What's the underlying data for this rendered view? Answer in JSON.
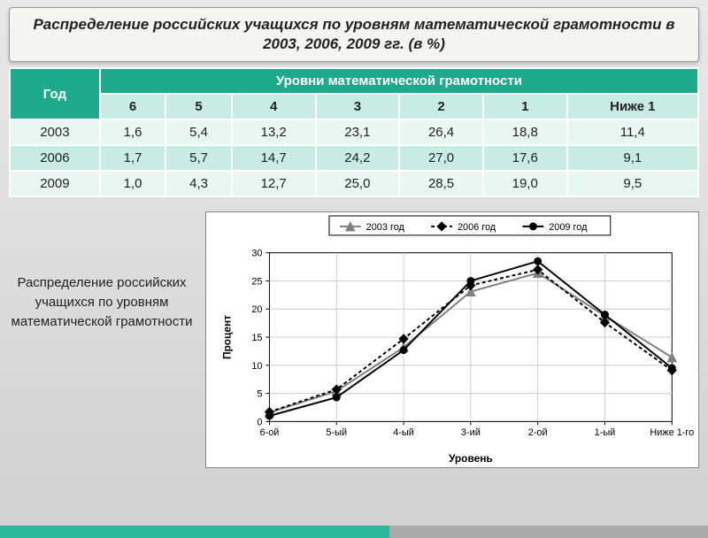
{
  "title": "Распределение российских учащихся по уровням математической грамотности в 2003, 2006, 2009 гг. (в %)",
  "table": {
    "corner_label": "Год",
    "span_label": "Уровни математической грамотности",
    "level_headers": [
      "6",
      "5",
      "4",
      "3",
      "2",
      "1",
      "Ниже 1"
    ],
    "rows": [
      {
        "year": "2003",
        "cells": [
          "1,6",
          "5,4",
          "13,2",
          "23,1",
          "26,4",
          "18,8",
          "11,4"
        ]
      },
      {
        "year": "2006",
        "cells": [
          "1,7",
          "5,7",
          "14,7",
          "24,2",
          "27,0",
          "17,6",
          "9,1"
        ]
      },
      {
        "year": "2009",
        "cells": [
          "1,0",
          "4,3",
          "12,7",
          "25,0",
          "28,5",
          "19,0",
          "9,5"
        ]
      }
    ],
    "header_bg": "#1fa98d",
    "header_fg": "#ffffff",
    "subheader_bg": "#c8ece3",
    "row_alt_a": "#e8f7f2",
    "row_alt_b": "#c8ece3",
    "border_color": "#ffffff"
  },
  "caption": "Распределение российских учащихся по уровням математической грамотности",
  "chart": {
    "type": "line",
    "background_color": "#ffffff",
    "grid_color": "#cccccc",
    "axis_color": "#000000",
    "xlabel": "Уровень",
    "ylabel": "Процент",
    "categories": [
      "6-ой",
      "5-ый",
      "4-ый",
      "3-ий",
      "2-ой",
      "1-ый",
      "Ниже 1-го"
    ],
    "ylim": [
      0,
      30
    ],
    "ytick_step": 5,
    "label_fontsize": 12,
    "tick_fontsize": 11,
    "line_width": 2,
    "marker_size": 5,
    "legend_position": "top",
    "series": [
      {
        "name": "2003 год",
        "color": "#808080",
        "dash": "none",
        "marker": "triangle",
        "values": [
          1.6,
          5.4,
          13.2,
          23.1,
          26.4,
          18.8,
          11.4
        ]
      },
      {
        "name": "2006 год",
        "color": "#000000",
        "dash": "4,3",
        "marker": "diamond",
        "values": [
          1.7,
          5.7,
          14.7,
          24.2,
          27.0,
          17.6,
          9.1
        ]
      },
      {
        "name": "2009 год",
        "color": "#000000",
        "dash": "none",
        "marker": "circle",
        "values": [
          1.0,
          4.3,
          12.7,
          25.0,
          28.5,
          19.0,
          9.5
        ]
      }
    ]
  }
}
